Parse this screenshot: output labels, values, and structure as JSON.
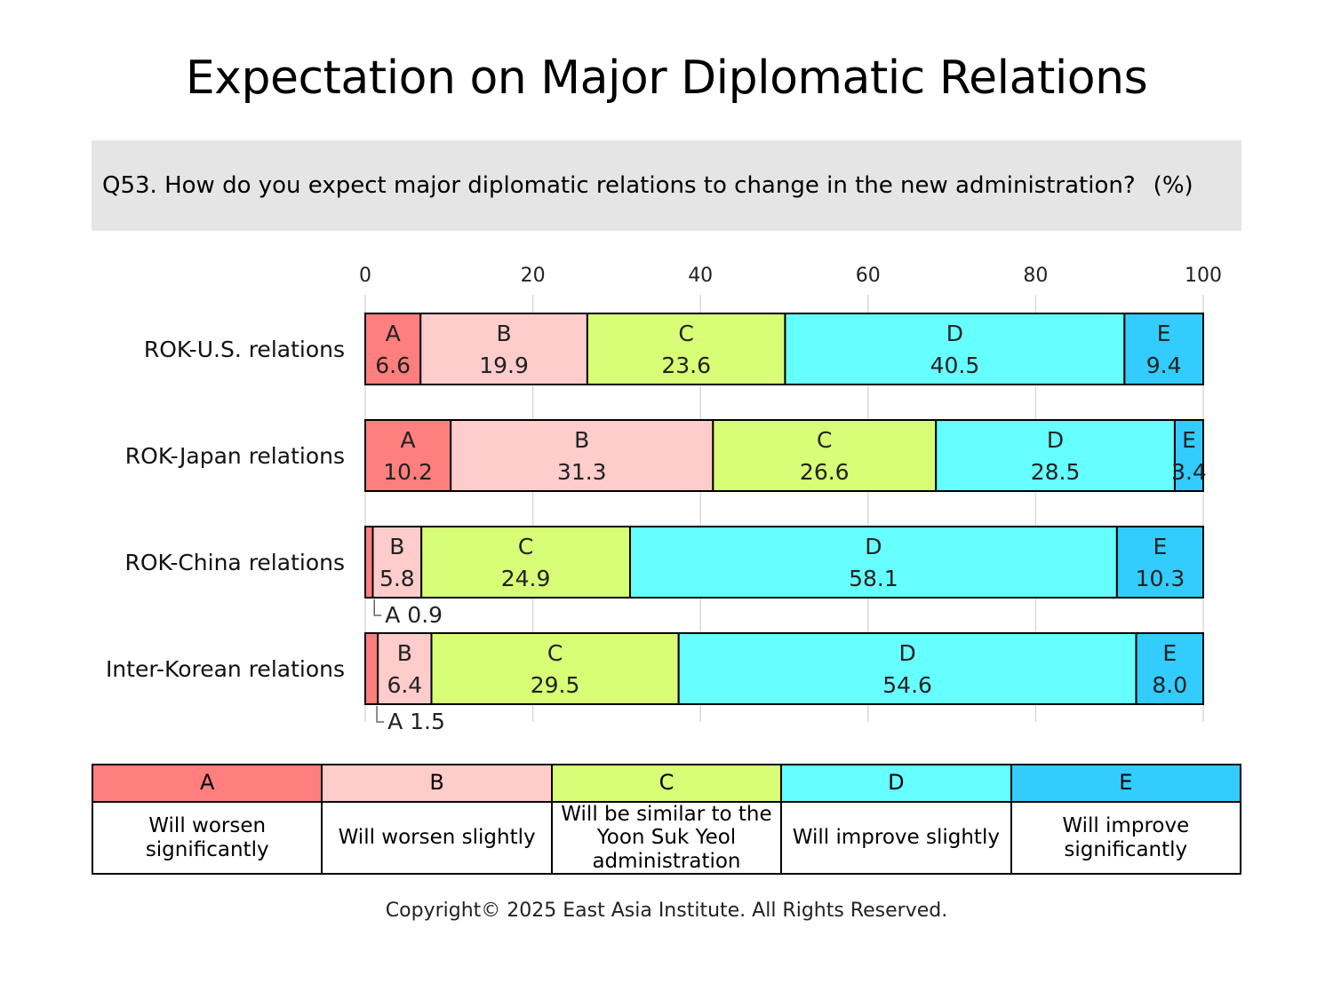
{
  "title": "Expectation on Major Diplomatic Relations",
  "question": "Q53. How do you expect major diplomatic relations to change in the new administration?",
  "unit": "(%)",
  "legend": [
    {
      "key": "A",
      "desc": "Will worsen significantly",
      "color": "#ff7f7f"
    },
    {
      "key": "B",
      "desc": "Will worsen slightly",
      "color": "#ffcccc"
    },
    {
      "key": "C",
      "desc": "Will be similar to the Yoon Suk Yeol administration",
      "color": "#d8fd76"
    },
    {
      "key": "D",
      "desc": "Will improve slightly",
      "color": "#66ffff"
    },
    {
      "key": "E",
      "desc": "Will improve significantly",
      "color": "#33ccff"
    }
  ],
  "copyright": "Copyright© 2025 East Asia Institute. All Rights Reserved.",
  "chart_data": {
    "type": "bar",
    "orientation": "horizontal",
    "stacked": true,
    "xlim": [
      0,
      100
    ],
    "xticks": [
      0,
      20,
      40,
      60,
      80,
      100
    ],
    "grid": true,
    "categories": [
      "ROK-U.S. relations",
      "ROK-Japan relations",
      "ROK-China relations",
      "Inter-Korean relations"
    ],
    "series": [
      {
        "name": "A",
        "values": [
          6.6,
          10.2,
          0.9,
          1.5
        ]
      },
      {
        "name": "B",
        "values": [
          19.9,
          31.3,
          5.8,
          6.4
        ]
      },
      {
        "name": "C",
        "values": [
          23.6,
          26.6,
          24.9,
          29.5
        ]
      },
      {
        "name": "D",
        "values": [
          40.5,
          28.5,
          58.1,
          54.6
        ]
      },
      {
        "name": "E",
        "values": [
          9.4,
          3.4,
          10.3,
          8.0
        ]
      }
    ]
  }
}
